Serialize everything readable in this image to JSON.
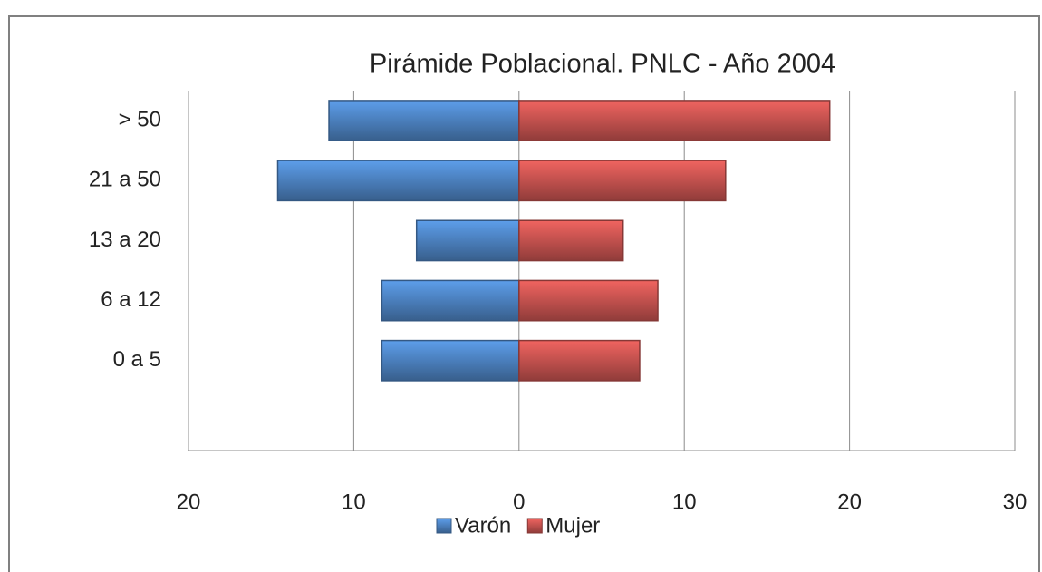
{
  "chart_data": {
    "type": "bar",
    "orientation": "horizontal",
    "stacked": true,
    "title": "Pirámide Poblacional. PNLC - Año 2004",
    "categories": [
      "> 50",
      "21 a 50",
      "13 a 20",
      "6 a 12",
      "0 a 5",
      null
    ],
    "series": [
      {
        "name": "Varón",
        "color": "#4a7ebb",
        "values": [
          -11.5,
          -14.6,
          -6.2,
          -8.3,
          -8.3,
          null
        ]
      },
      {
        "name": "Mujer",
        "color": "#c0504d",
        "values": [
          18.8,
          12.5,
          6.3,
          8.4,
          7.3,
          null
        ]
      }
    ],
    "xlim": [
      -20,
      30
    ],
    "xticks": [
      {
        "value": -20,
        "label": "20"
      },
      {
        "value": -10,
        "label": "10"
      },
      0,
      10,
      20,
      30
    ],
    "grid": true,
    "legend": "bottom"
  }
}
